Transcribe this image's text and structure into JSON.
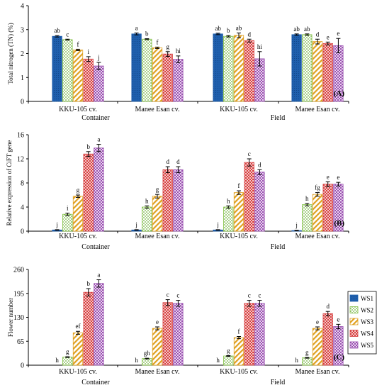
{
  "series_labels": [
    "WS1",
    "WS2",
    "WS3",
    "WS4",
    "WS5"
  ],
  "panels": [
    {
      "chart_data": {
        "type": "bar",
        "panel_label": "(A)",
        "ylabel": "Total nitrogen (TN) (%)",
        "ylim": [
          0,
          4
        ],
        "yticks": [
          0,
          1,
          2,
          3,
          4
        ],
        "groups": [
          "KKU-105 cv.",
          "Manee Esan cv.",
          "KKU-105 cv.",
          "Manee Esan cv."
        ],
        "conditions": [
          "Container",
          "Field"
        ],
        "series": [
          {
            "name": "WS1",
            "values": [
              2.72,
              2.82,
              2.82,
              2.79
            ],
            "errors": [
              0.03,
              0.04,
              0.03,
              0.03
            ],
            "letters": [
              "ab",
              "a",
              "ab",
              "ab"
            ]
          },
          {
            "name": "WS2",
            "values": [
              2.58,
              2.6,
              2.72,
              2.79
            ],
            "errors": [
              0.02,
              0.02,
              0.03,
              0.03
            ],
            "letters": [
              "c",
              "b",
              "b",
              "ab"
            ]
          },
          {
            "name": "WS3",
            "values": [
              2.15,
              2.24,
              2.76,
              2.5
            ],
            "errors": [
              0.03,
              0.03,
              0.1,
              0.1
            ],
            "letters": [
              "f",
              "f",
              "ab",
              "d"
            ]
          },
          {
            "name": "WS4",
            "values": [
              1.77,
              1.98,
              2.54,
              2.42
            ],
            "errors": [
              0.1,
              0.1,
              0.06,
              0.06
            ],
            "letters": [
              "i",
              "g",
              "d",
              "e"
            ]
          },
          {
            "name": "WS5",
            "values": [
              1.48,
              1.76,
              1.78,
              2.33
            ],
            "errors": [
              0.15,
              0.14,
              0.3,
              0.3
            ],
            "letters": [
              "j",
              "hi",
              "hi",
              "e"
            ]
          }
        ]
      }
    },
    {
      "chart_data": {
        "type": "bar",
        "panel_label": "(B)",
        "ylabel": "Relative expression of CiFT gene",
        "ylim": [
          0,
          16
        ],
        "yticks": [
          0,
          4,
          8,
          12,
          16
        ],
        "groups": [
          "KKU-105 cv.",
          "Manee Esan cv.",
          "KKU-105 cv.",
          "Manee Esan cv."
        ],
        "conditions": [
          "Container",
          "Field"
        ],
        "series": [
          {
            "name": "WS1",
            "values": [
              0.2,
              0.2,
              0.2,
              0.1
            ],
            "errors": [
              0.05,
              0.05,
              0.05,
              0.05
            ],
            "letters": [
              "j",
              "j",
              "j",
              "j"
            ]
          },
          {
            "name": "WS2",
            "values": [
              2.8,
              4.0,
              4.0,
              4.4
            ],
            "errors": [
              0.2,
              0.2,
              0.2,
              0.2
            ],
            "letters": [
              "i",
              "h",
              "h",
              "h"
            ]
          },
          {
            "name": "WS3",
            "values": [
              5.8,
              5.8,
              6.4,
              6.1
            ],
            "errors": [
              0.2,
              0.3,
              0.3,
              0.3
            ],
            "letters": [
              "g",
              "g",
              "f",
              "fg"
            ]
          },
          {
            "name": "WS4",
            "values": [
              12.8,
              10.2,
              11.4,
              7.8
            ],
            "errors": [
              0.4,
              0.5,
              0.6,
              0.4
            ],
            "letters": [
              "b",
              "d",
              "c",
              "e"
            ]
          },
          {
            "name": "WS5",
            "values": [
              13.8,
              10.2,
              9.8,
              7.8
            ],
            "errors": [
              0.6,
              0.5,
              0.4,
              0.3
            ],
            "letters": [
              "a",
              "d",
              "d",
              "e"
            ]
          }
        ]
      }
    },
    {
      "chart_data": {
        "type": "bar",
        "panel_label": "(C)",
        "ylabel": "Flower number",
        "ylim": [
          0,
          260
        ],
        "yticks": [
          0,
          65,
          130,
          195,
          260
        ],
        "groups": [
          "KKU-105 cv.",
          "Manee Esan cv.",
          "KKU-105 cv.",
          "Manee Esan cv."
        ],
        "conditions": [
          "Container",
          "Field"
        ],
        "series": [
          {
            "name": "WS1",
            "values": [
              0,
              0,
              0,
              0
            ],
            "errors": [
              0,
              0,
              0,
              0
            ],
            "letters": [
              "h",
              "h",
              "h",
              "h"
            ]
          },
          {
            "name": "WS2",
            "values": [
              22,
              18,
              25,
              20
            ],
            "errors": [
              1,
              1,
              1,
              1
            ],
            "letters": [
              "g",
              "gh",
              "g",
              "g"
            ]
          },
          {
            "name": "WS3",
            "values": [
              88,
              100,
              75,
              100
            ],
            "errors": [
              4,
              4,
              3,
              4
            ],
            "letters": [
              "ef",
              "e",
              "f",
              "e"
            ]
          },
          {
            "name": "WS4",
            "values": [
              198,
              170,
              168,
              140
            ],
            "errors": [
              10,
              8,
              8,
              6
            ],
            "letters": [
              "b",
              "c",
              "c",
              "d"
            ]
          },
          {
            "name": "WS5",
            "values": [
              222,
              168,
              168,
              105
            ],
            "errors": [
              10,
              8,
              8,
              6
            ],
            "letters": [
              "a",
              "c",
              "c",
              "e"
            ]
          }
        ]
      }
    }
  ],
  "colors": {
    "WS1": "#1f5fad",
    "WS2": "#7fbf3f",
    "WS3": "#e0a020",
    "WS4": "#d84040",
    "WS5": "#9a50b0"
  },
  "icons": [
    "solid-fill",
    "dotted-pattern",
    "diagonal-stripe-pattern",
    "checker-pattern",
    "checker-pattern"
  ],
  "legend_placement": "right, beside panel C"
}
